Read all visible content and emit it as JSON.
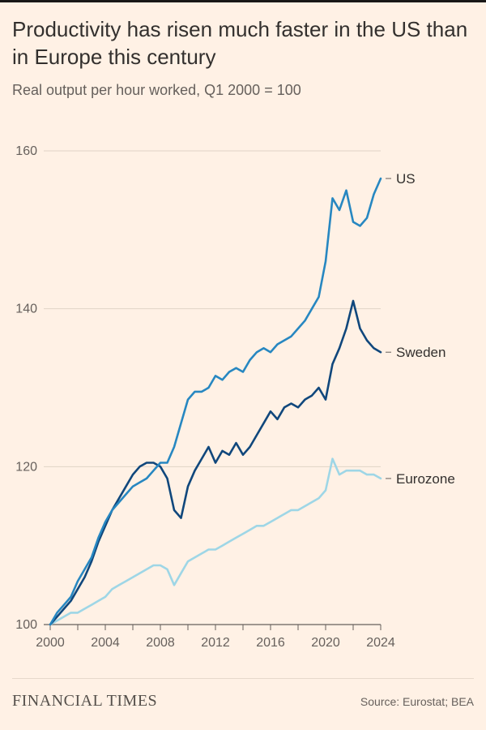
{
  "page": {
    "background_color": "#FFF1E5",
    "top_rule_color": "#1a1817"
  },
  "footer": {
    "brand": "FINANCIAL TIMES",
    "source": "Source: Eurostat; BEA"
  },
  "chart_data": {
    "type": "line",
    "title": "Productivity has risen much faster in the US than in Europe this century",
    "subtitle": "Real output per hour worked, Q1 2000 = 100",
    "xlabel": "",
    "ylabel": "",
    "xlim": [
      2000,
      2024
    ],
    "ylim": [
      100,
      160
    ],
    "x_ticks": [
      2000,
      2004,
      2008,
      2012,
      2016,
      2020,
      2024
    ],
    "x_minor_tick_step": 2,
    "y_ticks": [
      100,
      120,
      140,
      160
    ],
    "grid": "horizontal",
    "legend_position": "right-of-line-end",
    "x_start": 2000,
    "x_step": 0.5,
    "colors": {
      "grid": "#e0d4c6",
      "axis": "#66605c",
      "axis_text": "#66605c",
      "label_text": "#33302e"
    },
    "series": [
      {
        "name": "US",
        "color": "#2787c1",
        "values": [
          100,
          101.5,
          102.5,
          103.5,
          105.5,
          107,
          108.5,
          111,
          113,
          114.5,
          115.5,
          116.5,
          117.5,
          118,
          118.5,
          119.5,
          120.5,
          120.5,
          122.5,
          125.5,
          128.5,
          129.5,
          129.5,
          130,
          131.5,
          131,
          132,
          132.5,
          132,
          133.5,
          134.5,
          135,
          134.5,
          135.5,
          136,
          136.5,
          137.5,
          138.5,
          140,
          141.5,
          146,
          154,
          152.5,
          155,
          151,
          150.5,
          151.5,
          154.5,
          156.5
        ]
      },
      {
        "name": "Sweden",
        "color": "#10477c",
        "values": [
          100,
          101,
          102,
          103,
          104.5,
          106,
          108,
          110.5,
          112.5,
          114.5,
          116,
          117.5,
          119,
          120,
          120.5,
          120.5,
          120,
          118.5,
          114.5,
          113.5,
          117.5,
          119.5,
          121,
          122.5,
          120.5,
          122,
          121.5,
          123,
          121.5,
          122.5,
          124,
          125.5,
          127,
          126,
          127.5,
          128,
          127.5,
          128.5,
          129,
          130,
          128.5,
          133,
          135,
          137.5,
          141,
          137.5,
          136,
          135,
          134.5
        ]
      },
      {
        "name": "Eurozone",
        "color": "#9ed6e6",
        "values": [
          100,
          100.5,
          101,
          101.5,
          101.5,
          102,
          102.5,
          103,
          103.5,
          104.5,
          105,
          105.5,
          106,
          106.5,
          107,
          107.5,
          107.5,
          107,
          105,
          106.5,
          108,
          108.5,
          109,
          109.5,
          109.5,
          110,
          110.5,
          111,
          111.5,
          112,
          112.5,
          112.5,
          113,
          113.5,
          114,
          114.5,
          114.5,
          115,
          115.5,
          116,
          117,
          121,
          119,
          119.5,
          119.5,
          119.5,
          119,
          119,
          118.5
        ]
      }
    ]
  }
}
